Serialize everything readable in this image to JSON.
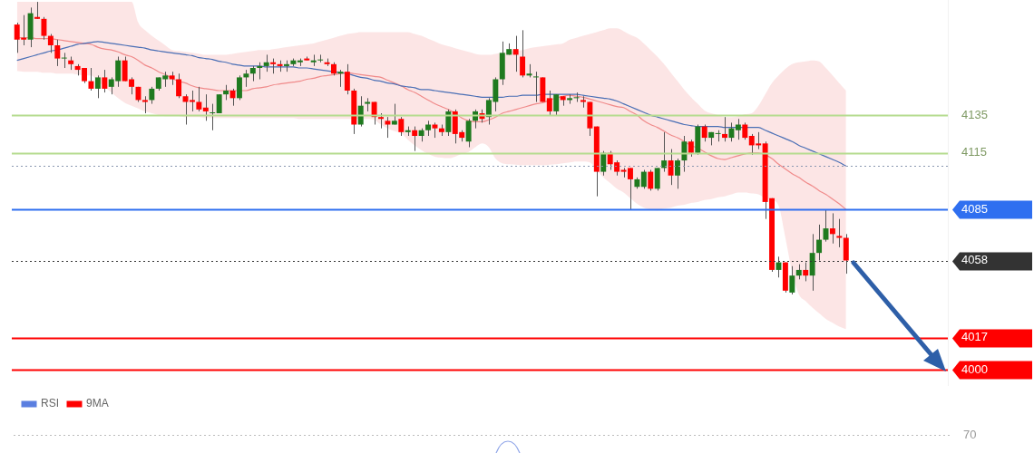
{
  "chart_data": [
    {
      "type": "candlestick",
      "categories": [
        null,
        null,
        null,
        null,
        null,
        null,
        null,
        null,
        null,
        null,
        null,
        null,
        null,
        null,
        null,
        null,
        null,
        null,
        null,
        null,
        null,
        null,
        null,
        null,
        null,
        null,
        null,
        null,
        null,
        null,
        null,
        null,
        null,
        null,
        null,
        null,
        null,
        null,
        null,
        null,
        null,
        null,
        null,
        null,
        null,
        null,
        null,
        null,
        null,
        null,
        null,
        null,
        null,
        null,
        null,
        null,
        null,
        null,
        null,
        null,
        null,
        null,
        null,
        null,
        null,
        null,
        null,
        null,
        null,
        null,
        null,
        null,
        null,
        null,
        null,
        null,
        null,
        null,
        null,
        null,
        null,
        null,
        null,
        null,
        null,
        null,
        null,
        null,
        null,
        null,
        null,
        null,
        null,
        null,
        null,
        null,
        null,
        null,
        null,
        null,
        null,
        null,
        null,
        null,
        null,
        null,
        null,
        null,
        null,
        null,
        null,
        null,
        null,
        null,
        null,
        null,
        null,
        null,
        null,
        null,
        null,
        null,
        null,
        null
      ],
      "ohlc": [
        [
          4183,
          4184,
          4168,
          4175
        ],
        [
          4176,
          4188,
          4172,
          4175
        ],
        [
          4175,
          4192,
          4171,
          4189
        ],
        [
          4187,
          4195,
          4186,
          4186
        ],
        [
          4186,
          4187,
          4175,
          4177
        ],
        [
          4177,
          4178,
          4168,
          4172
        ],
        [
          4172,
          4175,
          4161,
          4165
        ],
        [
          4165,
          4168,
          4160,
          4165
        ],
        [
          4164,
          4166,
          4159,
          4162
        ],
        [
          4161,
          4162,
          4156,
          4159
        ],
        [
          4160,
          4160,
          4152,
          4153
        ],
        [
          4153,
          4160,
          4148,
          4149
        ],
        [
          4149,
          4156,
          4144,
          4155
        ],
        [
          4155,
          4159,
          4147,
          4149
        ],
        [
          4150,
          4155,
          4146,
          4154
        ],
        [
          4153,
          4166,
          4150,
          4164
        ],
        [
          4164,
          4166,
          4153,
          4153
        ],
        [
          4154,
          4155,
          4146,
          4150
        ],
        [
          4150,
          4150,
          4142,
          4143
        ],
        [
          4143,
          4145,
          4136,
          4142
        ],
        [
          4143,
          4150,
          4141,
          4149
        ],
        [
          4149,
          4155,
          4148,
          4155
        ],
        [
          4154,
          4158,
          4150,
          4156
        ],
        [
          4156,
          4158,
          4151,
          4154
        ],
        [
          4154,
          4157,
          4144,
          4145
        ],
        [
          4145,
          4146,
          4130,
          4142
        ],
        [
          4143,
          4148,
          4137,
          4142
        ],
        [
          4142,
          4150,
          4137,
          4138
        ],
        [
          4139,
          4146,
          4132,
          4137
        ],
        [
          4136,
          4141,
          4127,
          4136
        ],
        [
          4136,
          4146,
          4136,
          4146
        ],
        [
          4146,
          4151,
          4143,
          4148
        ],
        [
          4148,
          4149,
          4140,
          4144
        ],
        [
          4144,
          4156,
          4143,
          4155
        ],
        [
          4155,
          4159,
          4150,
          4157
        ],
        [
          4157,
          4161,
          4153,
          4160
        ],
        [
          4160,
          4163,
          4154,
          4161
        ],
        [
          4161,
          4167,
          4158,
          4163
        ],
        [
          4163,
          4165,
          4157,
          4162
        ],
        [
          4162,
          4164,
          4158,
          4161
        ],
        [
          4161,
          4164,
          4158,
          4162
        ],
        [
          4162,
          4165,
          4161,
          4164
        ],
        [
          4163,
          4165,
          4161,
          4164
        ],
        [
          4165,
          4166,
          4164,
          4164
        ],
        [
          4163,
          4167,
          4161,
          4164
        ],
        [
          4164,
          4167,
          4163,
          4164
        ],
        [
          4163,
          4165,
          4161,
          4162
        ],
        [
          4162,
          4163,
          4156,
          4157
        ],
        [
          4157,
          4159,
          4150,
          4158
        ],
        [
          4158,
          4162,
          4146,
          4148
        ],
        [
          4148,
          4149,
          4125,
          4130
        ],
        [
          4130,
          4145,
          4129,
          4140
        ],
        [
          4141,
          4144,
          4137,
          4142
        ],
        [
          4142,
          4142,
          4130,
          4134
        ],
        [
          4134,
          4136,
          4128,
          4133
        ],
        [
          4132,
          4134,
          4123,
          4130
        ],
        [
          4130,
          4141,
          4130,
          4132
        ],
        [
          4133,
          4134,
          4124,
          4126
        ],
        [
          4126,
          4129,
          4124,
          4127
        ],
        [
          4127,
          4129,
          4116,
          4124
        ],
        [
          4124,
          4128,
          4121,
          4127
        ],
        [
          4127,
          4132,
          4124,
          4130
        ],
        [
          4130,
          4131,
          4123,
          4128
        ],
        [
          4128,
          4130,
          4124,
          4126
        ],
        [
          4126,
          4138,
          4124,
          4137
        ],
        [
          4137,
          4138,
          4120,
          4125
        ],
        [
          4126,
          4127,
          4121,
          4123
        ],
        [
          4121,
          4133,
          4118,
          4132
        ],
        [
          4132,
          4138,
          4128,
          4137
        ],
        [
          4136,
          4138,
          4131,
          4133
        ],
        [
          4134,
          4144,
          4130,
          4143
        ],
        [
          4142,
          4155,
          4137,
          4154
        ],
        [
          4154,
          4174,
          4151,
          4168
        ],
        [
          4167,
          4173,
          4167,
          4170
        ],
        [
          4170,
          4177,
          4158,
          4167
        ],
        [
          4166,
          4180,
          4155,
          4156
        ],
        [
          4156,
          4162,
          4155,
          4157
        ],
        [
          4155,
          4158,
          4142,
          4155
        ],
        [
          4155,
          4155,
          4142,
          4142
        ],
        [
          4144,
          4148,
          4135,
          4137
        ],
        [
          4137,
          4146,
          4135,
          4146
        ],
        [
          4145,
          4145,
          4140,
          4143
        ],
        [
          4143,
          4146,
          4141,
          4144
        ],
        [
          4144,
          4147,
          4142,
          4144
        ],
        [
          4143,
          4145,
          4139,
          4142
        ],
        [
          4142,
          4142,
          4124,
          4128
        ],
        [
          4129,
          4129,
          4092,
          4105
        ],
        [
          4105,
          4116,
          4103,
          4115
        ],
        [
          4115,
          4116,
          4106,
          4109
        ],
        [
          4110,
          4111,
          4103,
          4105
        ],
        [
          4106,
          4107,
          4102,
          4105
        ],
        [
          4107,
          4107,
          4085,
          4101
        ],
        [
          4097,
          4102,
          4096,
          4101
        ],
        [
          4097,
          4106,
          4096,
          4105
        ],
        [
          4105,
          4106,
          4095,
          4096
        ],
        [
          4096,
          4107,
          4095,
          4107
        ],
        [
          4107,
          4126,
          4105,
          4111
        ],
        [
          4111,
          4117,
          4098,
          4103
        ],
        [
          4103,
          4112,
          4096,
          4111
        ],
        [
          4111,
          4124,
          4105,
          4121
        ],
        [
          4121,
          4122,
          4113,
          4115
        ],
        [
          4115,
          4130,
          4114,
          4129
        ],
        [
          4129,
          4130,
          4121,
          4123
        ],
        [
          4123,
          4126,
          4119,
          4126
        ],
        [
          4125,
          4127,
          4121,
          4125
        ],
        [
          4125,
          4134,
          4121,
          4123
        ],
        [
          4123,
          4131,
          4121,
          4128
        ],
        [
          4127,
          4133,
          4122,
          4130
        ],
        [
          4130,
          4131,
          4122,
          4123
        ],
        [
          4124,
          4125,
          4114,
          4119
        ],
        [
          4120,
          4126,
          4117,
          4119
        ],
        [
          4120,
          4121,
          4080,
          4089
        ],
        [
          4091,
          4091,
          4052,
          4053
        ],
        [
          4053,
          4060,
          4049,
          4057
        ],
        [
          4057,
          4057,
          4041,
          4042
        ],
        [
          4041,
          4055,
          4040,
          4050
        ],
        [
          4050,
          4056,
          4048,
          4053
        ],
        [
          4053,
          4057,
          4047,
          4050
        ],
        [
          4050,
          4072,
          4042,
          4062
        ],
        [
          4062,
          4077,
          4058,
          4069
        ],
        [
          4069,
          4085,
          4068,
          4075
        ],
        [
          4075,
          4083,
          4067,
          4072
        ],
        [
          4071,
          4080,
          4065,
          4070
        ],
        [
          4070,
          4072,
          4051,
          4058
        ]
      ],
      "series": [
        {
          "type": "line",
          "color": "#4a6fb5",
          "values": [
            4164,
            4165,
            4166,
            4167,
            4168,
            4169,
            4169.5,
            4170.5,
            4171.5,
            4172.5,
            4173,
            4173.5,
            4174,
            4173.5,
            4173,
            4172.5,
            4172,
            4171.5,
            4171,
            4170.5,
            4169.5,
            4169,
            4168.5,
            4168,
            4167.5,
            4167,
            4166.5,
            4165.5,
            4165,
            4164.5,
            4163.5,
            4163,
            4162,
            4161.5,
            4161,
            4161,
            4161,
            4160.5,
            4160.5,
            4160.5,
            4160.5,
            4160.5,
            4160,
            4160,
            4159.5,
            4159,
            4158.5,
            4158,
            4157.5,
            4157,
            4156,
            4155,
            4154.5,
            4153.5,
            4153,
            4152,
            4151.5,
            4150.5,
            4150,
            4149.5,
            4148.5,
            4148.5,
            4148,
            4147.5,
            4147,
            4146.5,
            4146,
            4145.5,
            4145,
            4144.5,
            4144.5,
            4144.5,
            4144.5,
            4145,
            4145,
            4145.5,
            4145.5,
            4145.5,
            4146,
            4146,
            4146,
            4146,
            4146,
            4146,
            4145.5,
            4145,
            4144.5,
            4144,
            4143.5,
            4142.5,
            4141,
            4139.5,
            4138,
            4136.5,
            4135,
            4134,
            4133,
            4132,
            4131,
            4130,
            4129.5,
            4129,
            4129,
            4129,
            4129,
            4128.5,
            4128.5,
            4128.5,
            4128.5,
            4128.5,
            4128.5,
            4127,
            4125.5,
            4124,
            4122.5,
            4121,
            4119,
            4117.5,
            4116,
            4114.5,
            4113,
            4111.5,
            4110,
            4108
          ]
        },
        {
          "type": "line",
          "color": "#f08a8a",
          "values": [
            4176,
            4176,
            4176,
            4175.5,
            4175.5,
            4175.5,
            4175,
            4174.5,
            4174,
            4173.5,
            4173,
            4172.5,
            4171,
            4170,
            4169.5,
            4168.5,
            4167,
            4166,
            4164,
            4161.5,
            4160,
            4158,
            4156.5,
            4154.5,
            4153,
            4152,
            4150.5,
            4149.5,
            4149,
            4148.5,
            4148,
            4148,
            4148,
            4148,
            4148,
            4149,
            4149.5,
            4150,
            4151,
            4151.5,
            4152,
            4152.5,
            4153,
            4154,
            4154.5,
            4155.5,
            4156,
            4156.5,
            4157,
            4157.5,
            4157,
            4156.5,
            4156,
            4155.5,
            4155,
            4153.5,
            4152,
            4150.5,
            4148.5,
            4147,
            4145,
            4143,
            4141,
            4139.5,
            4138,
            4136,
            4133.5,
            4132,
            4131.5,
            4131.5,
            4132.5,
            4134,
            4136,
            4137,
            4138,
            4139,
            4140,
            4141,
            4141.5,
            4143,
            4144,
            4145,
            4145.5,
            4145,
            4144.5,
            4143.5,
            4142.5,
            4141.5,
            4140.5,
            4139.5,
            4139,
            4137,
            4135,
            4132,
            4130,
            4128.5,
            4126.5,
            4124.5,
            4123,
            4121,
            4119,
            4117.5,
            4115.5,
            4113.5,
            4112,
            4111.5,
            4112.5,
            4113.5,
            4114.5,
            4115,
            4115,
            4114,
            4112,
            4109,
            4106.5,
            4104,
            4102,
            4099.5,
            4097.5,
            4095,
            4093,
            4090.5,
            4088,
            4085
          ],
          "upper": [
            4195,
            4195,
            4195,
            4195,
            4195,
            4195,
            4195,
            4195,
            4195,
            4195,
            4195,
            4195,
            4195,
            4195,
            4195,
            4195,
            4195,
            4195,
            4184,
            4180,
            4177,
            4174.5,
            4172,
            4169.5,
            4169,
            4168.5,
            4168,
            4167.5,
            4167,
            4167,
            4167,
            4167,
            4167.5,
            4168,
            4168.5,
            4169,
            4169.5,
            4169.5,
            4170,
            4170.5,
            4171,
            4171.5,
            4172,
            4172.5,
            4173,
            4174,
            4175,
            4176,
            4177,
            4178,
            4178.5,
            4179,
            4179,
            4179,
            4179,
            4179,
            4179,
            4179,
            4179,
            4178,
            4177,
            4175.5,
            4174,
            4172.5,
            4171.5,
            4170.5,
            4169.5,
            4168.5,
            4167.5,
            4167,
            4167,
            4167.5,
            4168,
            4168.5,
            4169,
            4169.5,
            4170.5,
            4171,
            4171.5,
            4172,
            4172.5,
            4173,
            4175,
            4176,
            4177,
            4178,
            4179,
            4180,
            4181,
            4181,
            4179.5,
            4177.5,
            4176,
            4173,
            4169.5,
            4166,
            4162,
            4157.5,
            4153,
            4148.5,
            4144.5,
            4141,
            4137.5,
            4136,
            4135,
            4134,
            4134,
            4134.5,
            4135.5,
            4136,
            4140,
            4146,
            4152,
            4156,
            4159.5,
            4162,
            4163,
            4163.5,
            4164,
            4163.5,
            4160,
            4156,
            4152,
            4148
          ],
          "lower": [
            4158.4,
            4158,
            4158,
            4158,
            4157.5,
            4157.5,
            4157,
            4157,
            4157,
            4156.5,
            4156,
            4156,
            4153,
            4150,
            4147,
            4144,
            4141.5,
            4140,
            4138.5,
            4137,
            4136,
            4135,
            4134.5,
            4134.5,
            4134.5,
            4134,
            4134,
            4134,
            4133.5,
            4133.5,
            4133.5,
            4133.5,
            4133.5,
            4133.5,
            4133.5,
            4133.5,
            4133.5,
            4133.5,
            4133.5,
            4133.5,
            4133.5,
            4133.5,
            4133,
            4133,
            4133,
            4133,
            4133,
            4133,
            4133,
            4133,
            4133,
            4133,
            4133,
            4132.5,
            4130,
            4128,
            4126.5,
            4125.5,
            4122,
            4119,
            4116.5,
            4114.5,
            4113,
            4112.5,
            4112.2,
            4113,
            4114.5,
            4115.5,
            4118,
            4120,
            4118,
            4112,
            4109.5,
            4109,
            4108.8,
            4108.5,
            4108.5,
            4108.5,
            4108.5,
            4108.8,
            4109,
            4109.5,
            4110,
            4110.5,
            4110.5,
            4110,
            4106,
            4102,
            4099,
            4096,
            4094,
            4091,
            4088,
            4086,
            4085,
            4084.5,
            4085.5,
            4086,
            4087,
            4087.5,
            4088.5,
            4089,
            4090,
            4090.5,
            4091.5,
            4092,
            4093,
            4094,
            4094,
            4093.5,
            4093,
            4091,
            4090,
            4087,
            4070,
            4052,
            4040,
            4036.5,
            4033,
            4030,
            4027,
            4025,
            4023,
            4021.7
          ]
        }
      ],
      "ylim": [
        3992,
        4196
      ],
      "yticks": [
        4000,
        4017,
        4058,
        4085,
        4115,
        4135
      ],
      "tick_labels": "y",
      "ref_lines": [
        {
          "axis": "y",
          "value": 4135,
          "color": "#b5dc8f"
        },
        {
          "axis": "y",
          "value": 4115,
          "color": "#b5dc8f"
        },
        {
          "axis": "y",
          "value": 4085,
          "color": "#2f6ff0"
        },
        {
          "axis": "y",
          "value": 4108,
          "color": "#8a97b0",
          "line_style": "dotted"
        },
        {
          "axis": "y",
          "value": 4058,
          "color": "#333333",
          "line_style": "dotted"
        },
        {
          "axis": "y",
          "value": 4017,
          "color": "#ff0000"
        },
        {
          "axis": "y",
          "value": 4000,
          "color": "#ff0000"
        }
      ]
    },
    {
      "type": "other",
      "series": [
        {
          "name": "RSI",
          "color": "#5b7fe0"
        },
        {
          "name": "9MA",
          "color": "#ff0000"
        }
      ],
      "legend": "top left",
      "annotations": [
        "70"
      ]
    }
  ]
}
